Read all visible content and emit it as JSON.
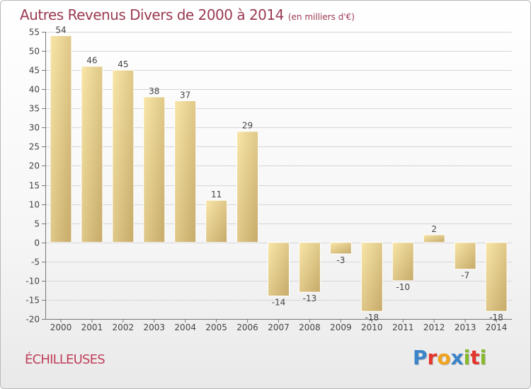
{
  "header": {
    "title": "Autres Revenus Divers de 2000 à 2014",
    "unit": "(en milliers d'€)"
  },
  "footer": {
    "commune": "ÉCHILLEUSES",
    "brand_letters": [
      {
        "ch": "P",
        "color": "#3a84c9"
      },
      {
        "ch": "r",
        "color": "#e5352c"
      },
      {
        "ch": "o",
        "color": "#f2a31b"
      },
      {
        "ch": "x",
        "color": "#3a84c9"
      },
      {
        "ch": "i",
        "color": "#88b92b"
      },
      {
        "ch": "t",
        "color": "#e5352c"
      },
      {
        "ch": "i",
        "color": "#88b92b"
      }
    ]
  },
  "colors": {
    "title": "#9a3a52",
    "bar_light": "#f7e3a3",
    "bar_dark": "#c8ad6c",
    "grid": "#d8d8d8",
    "label": "#444444"
  },
  "chart_data": {
    "type": "bar",
    "title": "Autres Revenus Divers de 2000 à 2014",
    "ylabel": "",
    "xlabel": "",
    "ylim": [
      -20,
      55
    ],
    "yticks": [
      -20,
      -15,
      -10,
      -5,
      0,
      5,
      10,
      15,
      20,
      25,
      30,
      35,
      40,
      45,
      50,
      55
    ],
    "grid": true,
    "categories": [
      "2000",
      "2001",
      "2002",
      "2003",
      "2004",
      "2005",
      "2006",
      "2007",
      "2008",
      "2009",
      "2010",
      "2011",
      "2012",
      "2013",
      "2014"
    ],
    "values": [
      54,
      46,
      45,
      38,
      37,
      11,
      29,
      -14,
      -13,
      -3,
      -18,
      -10,
      2,
      -7,
      -18
    ]
  }
}
